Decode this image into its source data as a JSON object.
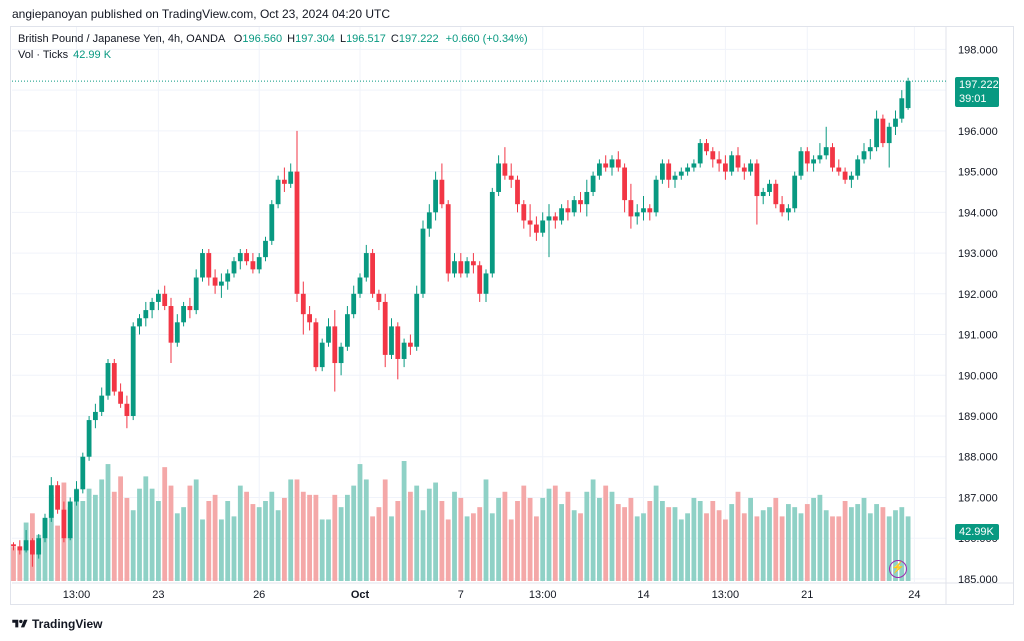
{
  "header": {
    "text": "angiepanoyan published on TradingView.com, Oct 23, 2024 04:20 UTC"
  },
  "legend": {
    "symbol": "British Pound / Japanese Yen, 4h, OANDA",
    "o_label": "O",
    "o": "196.560",
    "h_label": "H",
    "h": "197.304",
    "l_label": "L",
    "l": "196.517",
    "c_label": "C",
    "c": "197.222",
    "change": "+0.660 (+0.34%)",
    "vol_label": "Vol · Ticks",
    "vol_value": "42.99 K"
  },
  "price_tag": {
    "price": "197.222",
    "countdown": "39:01"
  },
  "volume_tag": "42.99K",
  "footer": {
    "brand": "TradingView"
  },
  "colors": {
    "up": "#089981",
    "down": "#f23645",
    "vol_up": "#8fd1c6",
    "vol_down": "#f4a8a8"
  },
  "chart_data": {
    "type": "candlestick",
    "title": "British Pound / Japanese Yen, 4h, OANDA",
    "y_axis": {
      "ticks": [
        "198.000",
        "197.000",
        "196.000",
        "195.000",
        "194.000",
        "193.000",
        "192.000",
        "191.000",
        "190.000",
        "189.000",
        "188.000",
        "187.000",
        "186.000",
        "185.000"
      ],
      "ylim": [
        184.9,
        198.55
      ],
      "position": "right"
    },
    "x_axis": {
      "labels": [
        "13:00",
        "23",
        "26",
        "Oct",
        "7",
        "13:00",
        "14",
        "13:00",
        "21",
        "24"
      ],
      "label_bars": [
        10,
        23,
        39,
        55,
        71,
        84,
        100,
        113,
        126,
        143
      ]
    },
    "bars_per_tick_interval": 6,
    "candles": [
      [
        185.85,
        185.9,
        185.7,
        185.8
      ],
      [
        185.8,
        185.95,
        185.6,
        185.7
      ],
      [
        185.7,
        186.2,
        185.65,
        185.95
      ],
      [
        185.95,
        186.0,
        185.3,
        185.6
      ],
      [
        185.6,
        186.1,
        185.5,
        186.0
      ],
      [
        186.0,
        186.6,
        185.9,
        186.5
      ],
      [
        186.5,
        187.5,
        186.4,
        187.3
      ],
      [
        187.3,
        187.4,
        186.6,
        186.7
      ],
      [
        186.7,
        186.9,
        185.9,
        186.0
      ],
      [
        186.0,
        187.0,
        185.95,
        186.9
      ],
      [
        186.9,
        187.4,
        186.8,
        187.2
      ],
      [
        187.2,
        188.1,
        187.1,
        188.0
      ],
      [
        188.0,
        189.0,
        187.9,
        188.9
      ],
      [
        188.9,
        189.3,
        188.7,
        189.1
      ],
      [
        189.1,
        189.7,
        189.0,
        189.5
      ],
      [
        189.5,
        190.4,
        189.4,
        190.3
      ],
      [
        190.3,
        190.4,
        189.5,
        189.6
      ],
      [
        189.6,
        189.8,
        189.2,
        189.3
      ],
      [
        189.3,
        189.5,
        188.7,
        189.0
      ],
      [
        189.0,
        191.3,
        188.9,
        191.2
      ],
      [
        191.2,
        191.5,
        191.0,
        191.4
      ],
      [
        191.4,
        191.8,
        191.2,
        191.6
      ],
      [
        191.6,
        191.9,
        191.4,
        191.8
      ],
      [
        191.8,
        192.1,
        191.6,
        192.0
      ],
      [
        192.0,
        192.2,
        191.6,
        191.7
      ],
      [
        191.7,
        191.9,
        190.3,
        190.8
      ],
      [
        190.8,
        191.5,
        190.7,
        191.3
      ],
      [
        191.3,
        191.8,
        191.2,
        191.7
      ],
      [
        191.7,
        191.9,
        191.4,
        191.6
      ],
      [
        191.6,
        192.6,
        191.5,
        192.4
      ],
      [
        192.4,
        193.1,
        192.3,
        193.0
      ],
      [
        193.0,
        193.1,
        192.2,
        192.4
      ],
      [
        192.4,
        192.6,
        192.0,
        192.2
      ],
      [
        192.2,
        192.5,
        191.9,
        192.3
      ],
      [
        192.3,
        192.6,
        192.1,
        192.5
      ],
      [
        192.5,
        192.9,
        192.4,
        192.8
      ],
      [
        192.8,
        193.1,
        192.6,
        193.0
      ],
      [
        193.0,
        193.1,
        192.7,
        192.8
      ],
      [
        192.8,
        193.0,
        192.5,
        192.6
      ],
      [
        192.6,
        193.0,
        192.5,
        192.9
      ],
      [
        192.9,
        193.4,
        192.8,
        193.3
      ],
      [
        193.3,
        194.3,
        193.2,
        194.2
      ],
      [
        194.2,
        194.9,
        194.1,
        194.8
      ],
      [
        194.8,
        195.1,
        194.5,
        194.7
      ],
      [
        194.7,
        195.2,
        194.6,
        195.0
      ],
      [
        195.0,
        196.0,
        191.8,
        192.0
      ],
      [
        192.0,
        192.3,
        191.0,
        191.5
      ],
      [
        191.5,
        191.7,
        191.1,
        191.3
      ],
      [
        191.3,
        191.4,
        190.1,
        190.2
      ],
      [
        190.2,
        190.9,
        190.1,
        190.8
      ],
      [
        190.8,
        191.4,
        190.7,
        191.2
      ],
      [
        191.2,
        191.6,
        189.6,
        190.3
      ],
      [
        190.3,
        190.8,
        190.0,
        190.7
      ],
      [
        190.7,
        191.7,
        190.6,
        191.5
      ],
      [
        191.5,
        192.2,
        191.4,
        192.0
      ],
      [
        192.0,
        192.5,
        191.9,
        192.4
      ],
      [
        192.4,
        193.2,
        192.3,
        193.0
      ],
      [
        193.0,
        193.1,
        191.9,
        192.0
      ],
      [
        192.0,
        192.1,
        191.6,
        191.8
      ],
      [
        191.8,
        192.0,
        190.2,
        190.5
      ],
      [
        190.5,
        191.4,
        190.4,
        191.2
      ],
      [
        191.2,
        191.3,
        189.9,
        190.4
      ],
      [
        190.4,
        190.9,
        190.2,
        190.8
      ],
      [
        190.8,
        191.0,
        190.5,
        190.7
      ],
      [
        190.7,
        192.2,
        190.6,
        192.0
      ],
      [
        192.0,
        193.8,
        191.9,
        193.6
      ],
      [
        193.6,
        194.2,
        193.4,
        194.0
      ],
      [
        194.0,
        195.0,
        193.8,
        194.8
      ],
      [
        194.8,
        195.2,
        194.1,
        194.2
      ],
      [
        194.2,
        194.3,
        192.3,
        192.5
      ],
      [
        192.5,
        193.0,
        192.4,
        192.8
      ],
      [
        192.8,
        193.0,
        192.4,
        192.5
      ],
      [
        192.5,
        192.9,
        192.4,
        192.8
      ],
      [
        192.8,
        193.0,
        192.5,
        192.7
      ],
      [
        192.7,
        192.8,
        191.8,
        192.0
      ],
      [
        192.0,
        192.6,
        191.8,
        192.5
      ],
      [
        192.5,
        194.6,
        192.4,
        194.5
      ],
      [
        194.5,
        195.4,
        194.4,
        195.2
      ],
      [
        195.2,
        195.6,
        194.8,
        194.9
      ],
      [
        194.9,
        195.2,
        194.6,
        194.8
      ],
      [
        194.8,
        194.9,
        194.0,
        194.2
      ],
      [
        194.2,
        194.3,
        193.6,
        193.8
      ],
      [
        193.8,
        194.2,
        193.4,
        193.7
      ],
      [
        193.7,
        193.9,
        193.3,
        193.5
      ],
      [
        193.5,
        194.0,
        193.4,
        193.8
      ],
      [
        193.8,
        194.2,
        192.9,
        193.9
      ],
      [
        193.9,
        194.0,
        193.6,
        193.8
      ],
      [
        193.8,
        194.2,
        193.7,
        194.1
      ],
      [
        194.1,
        194.3,
        193.8,
        194.0
      ],
      [
        194.0,
        194.4,
        193.9,
        194.3
      ],
      [
        194.3,
        194.5,
        194.0,
        194.2
      ],
      [
        194.2,
        194.8,
        193.9,
        194.5
      ],
      [
        194.5,
        195.0,
        194.4,
        194.9
      ],
      [
        194.9,
        195.3,
        194.8,
        195.2
      ],
      [
        195.2,
        195.4,
        195.0,
        195.1
      ],
      [
        195.1,
        195.4,
        194.9,
        195.3
      ],
      [
        195.3,
        195.5,
        195.0,
        195.1
      ],
      [
        195.1,
        195.2,
        194.0,
        194.3
      ],
      [
        194.3,
        194.7,
        193.6,
        193.9
      ],
      [
        193.9,
        194.2,
        193.7,
        194.0
      ],
      [
        194.0,
        194.4,
        193.8,
        194.1
      ],
      [
        194.1,
        194.2,
        193.8,
        194.0
      ],
      [
        194.0,
        194.9,
        193.9,
        194.8
      ],
      [
        194.8,
        195.3,
        194.7,
        195.2
      ],
      [
        195.2,
        195.3,
        194.6,
        194.8
      ],
      [
        194.8,
        195.0,
        194.6,
        194.9
      ],
      [
        194.9,
        195.1,
        194.8,
        195.0
      ],
      [
        195.0,
        195.2,
        194.9,
        195.1
      ],
      [
        195.1,
        195.3,
        195.0,
        195.2
      ],
      [
        195.2,
        195.8,
        195.1,
        195.7
      ],
      [
        195.7,
        195.8,
        195.4,
        195.5
      ],
      [
        195.5,
        195.6,
        195.1,
        195.3
      ],
      [
        195.3,
        195.5,
        195.0,
        195.2
      ],
      [
        195.2,
        195.4,
        194.8,
        195.0
      ],
      [
        195.0,
        195.5,
        194.9,
        195.4
      ],
      [
        195.4,
        195.6,
        195.0,
        195.1
      ],
      [
        195.1,
        195.2,
        194.8,
        195.0
      ],
      [
        195.0,
        195.3,
        194.9,
        195.2
      ],
      [
        195.2,
        195.3,
        193.7,
        194.4
      ],
      [
        194.4,
        194.6,
        194.2,
        194.5
      ],
      [
        194.5,
        194.8,
        194.4,
        194.7
      ],
      [
        194.7,
        194.8,
        194.1,
        194.2
      ],
      [
        194.2,
        194.4,
        193.9,
        194.0
      ],
      [
        194.0,
        194.2,
        193.8,
        194.1
      ],
      [
        194.1,
        195.0,
        194.0,
        194.9
      ],
      [
        194.9,
        195.6,
        194.8,
        195.5
      ],
      [
        195.5,
        195.6,
        195.0,
        195.2
      ],
      [
        195.2,
        195.4,
        195.0,
        195.3
      ],
      [
        195.3,
        195.7,
        195.2,
        195.4
      ],
      [
        195.4,
        196.1,
        195.3,
        195.6
      ],
      [
        195.6,
        195.7,
        195.0,
        195.1
      ],
      [
        195.1,
        195.3,
        194.9,
        195.0
      ],
      [
        195.0,
        195.1,
        194.7,
        194.8
      ],
      [
        194.8,
        195.0,
        194.6,
        194.9
      ],
      [
        194.9,
        195.4,
        194.8,
        195.3
      ],
      [
        195.3,
        195.7,
        195.2,
        195.5
      ],
      [
        195.5,
        195.8,
        195.3,
        195.6
      ],
      [
        195.6,
        196.5,
        195.5,
        196.3
      ],
      [
        196.3,
        196.4,
        195.6,
        195.7
      ],
      [
        195.7,
        196.2,
        195.1,
        196.1
      ],
      [
        196.1,
        196.5,
        195.9,
        196.3
      ],
      [
        196.3,
        197.0,
        196.2,
        196.8
      ],
      [
        196.56,
        197.304,
        196.517,
        197.222
      ]
    ],
    "volume_ticks": [
      0.55,
      0.5,
      0.95,
      1.1,
      0.75,
      1.0,
      1.4,
      0.9,
      1.6,
      1.2,
      1.5,
      1.3,
      1.5,
      1.4,
      1.65,
      1.9,
      1.45,
      1.7,
      1.35,
      1.15,
      1.5,
      1.7,
      1.5,
      1.3,
      1.85,
      1.55,
      1.1,
      1.2,
      1.55,
      1.65,
      1.0,
      1.3,
      1.4,
      1.0,
      1.3,
      1.05,
      1.55,
      1.45,
      1.25,
      1.2,
      1.3,
      1.45,
      1.15,
      1.35,
      1.65,
      1.65,
      1.45,
      1.4,
      1.4,
      1.0,
      1.0,
      1.4,
      1.2,
      1.4,
      1.55,
      1.9,
      1.65,
      1.05,
      1.2,
      1.65,
      1.05,
      1.3,
      1.95,
      1.45,
      1.55,
      1.15,
      1.5,
      1.6,
      1.3,
      1.0,
      1.45,
      1.35,
      1.05,
      1.1,
      1.2,
      1.65,
      1.1,
      1.35,
      1.45,
      1.0,
      1.3,
      1.55,
      1.35,
      1.05,
      1.35,
      1.5,
      1.55,
      1.25,
      1.45,
      1.15,
      1.1,
      1.45,
      1.65,
      1.35,
      1.55,
      1.45,
      1.25,
      1.2,
      1.35,
      1.05,
      1.1,
      1.3,
      1.55,
      1.3,
      1.2,
      1.2,
      1.0,
      1.1,
      1.35,
      1.3,
      1.1,
      1.3,
      1.15,
      1.0,
      1.25,
      1.45,
      1.1,
      1.35,
      1.05,
      1.15,
      1.2,
      1.35,
      1.05,
      1.25,
      1.2,
      1.1,
      1.25,
      1.35,
      1.4,
      1.15,
      1.05,
      1.05,
      1.3,
      1.2,
      1.25,
      1.35,
      1.1,
      1.25,
      1.2,
      1.05,
      1.15,
      1.2,
      1.05,
      0.85,
      0.95
    ]
  }
}
